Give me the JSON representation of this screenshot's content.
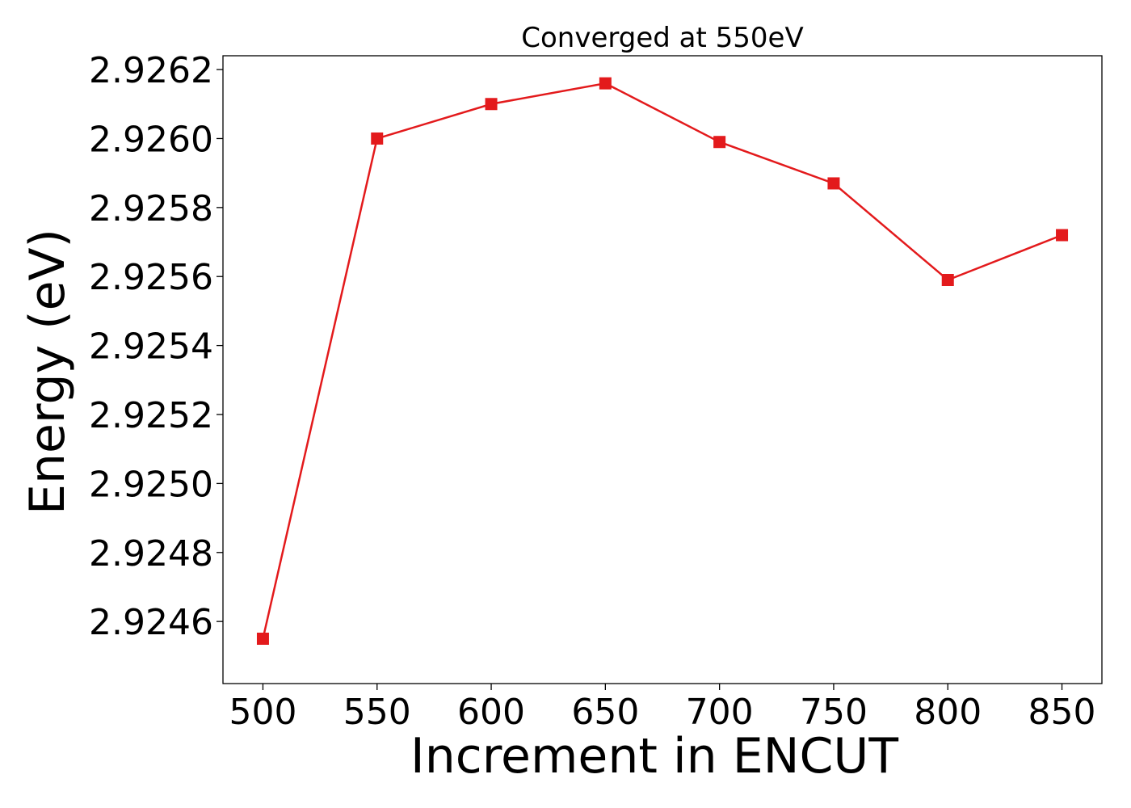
{
  "chart_data": {
    "type": "line",
    "title": "Converged at 550eV",
    "xlabel": "Increment in ENCUT",
    "ylabel": "Energy (eV)",
    "x": [
      500,
      550,
      600,
      650,
      700,
      750,
      800,
      850
    ],
    "series": [
      {
        "values": [
          2.92455,
          2.926,
          2.9261,
          2.92616,
          2.92599,
          2.92587,
          2.92559,
          2.92572
        ],
        "color": "#e31a1c",
        "marker": "square"
      }
    ],
    "xticks": [
      "500",
      "550",
      "600",
      "650",
      "700",
      "750",
      "800",
      "850"
    ],
    "yticks": [
      "2.9246",
      "2.9248",
      "2.9250",
      "2.9252",
      "2.9254",
      "2.9256",
      "2.9258",
      "2.9260",
      "2.9262"
    ],
    "xlim": [
      482.5,
      867.5
    ],
    "ylim": [
      2.92442,
      2.92624
    ],
    "grid": false
  }
}
